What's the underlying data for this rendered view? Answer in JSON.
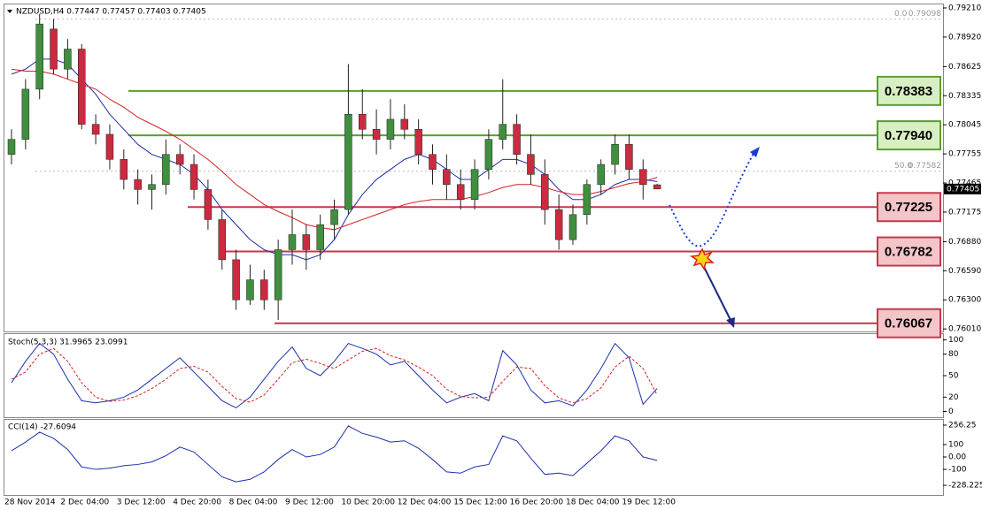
{
  "chart_data": {
    "type": "candlestick",
    "title": "NZDUSD,H4  0.77447 0.77457 0.77403 0.77405",
    "categories": [
      "28 Nov 2014",
      null,
      null,
      null,
      "2 Dec 04:00",
      null,
      null,
      null,
      "3 Dec 12:00",
      null,
      null,
      null,
      "4 Dec 20:00",
      null,
      null,
      null,
      "8 Dec 04:00",
      null,
      null,
      null,
      "9 Dec 12:00",
      null,
      null,
      null,
      "10 Dec 20:00",
      null,
      null,
      null,
      "12 Dec 04:00",
      null,
      null,
      null,
      "15 Dec 12:00",
      null,
      null,
      null,
      "16 Dec 20:00",
      null,
      null,
      null,
      "18 Dec 04:00",
      null,
      null,
      null,
      "19 Dec 12:00",
      null,
      null
    ],
    "open": [
      0.7775,
      0.779,
      0.784,
      0.79,
      0.786,
      0.788,
      0.7805,
      0.7795,
      0.777,
      0.775,
      0.774,
      0.7745,
      0.7775,
      0.7765,
      0.774,
      0.771,
      0.767,
      0.763,
      0.765,
      0.763,
      0.768,
      0.7695,
      0.768,
      0.7705,
      0.772,
      0.7815,
      0.78,
      0.779,
      0.781,
      0.78,
      0.7775,
      0.776,
      0.7745,
      0.773,
      0.776,
      0.779,
      0.7805,
      0.7775,
      0.7755,
      0.772,
      0.769,
      0.7715,
      0.7745,
      0.7765,
      0.7785,
      0.776,
      0.77447
    ],
    "high": [
      0.78,
      0.785,
      0.7915,
      0.791,
      0.789,
      0.7885,
      0.7815,
      0.7805,
      0.778,
      0.776,
      0.7755,
      0.779,
      0.7785,
      0.7775,
      0.775,
      0.772,
      0.768,
      0.7665,
      0.766,
      0.769,
      0.772,
      0.7705,
      0.7715,
      0.773,
      0.7865,
      0.784,
      0.782,
      0.783,
      0.7825,
      0.781,
      0.7785,
      0.7775,
      0.776,
      0.777,
      0.78,
      0.785,
      0.7815,
      0.7795,
      0.777,
      0.7735,
      0.7725,
      0.775,
      0.777,
      0.7795,
      0.7795,
      0.777,
      0.77457
    ],
    "low": [
      0.7765,
      0.778,
      0.783,
      0.7855,
      0.785,
      0.78,
      0.7785,
      0.776,
      0.774,
      0.7725,
      0.772,
      0.7735,
      0.7755,
      0.773,
      0.77,
      0.766,
      0.762,
      0.7625,
      0.762,
      0.761,
      0.7665,
      0.766,
      0.767,
      0.769,
      0.7715,
      0.779,
      0.7775,
      0.778,
      0.779,
      0.7765,
      0.7745,
      0.773,
      0.772,
      0.772,
      0.775,
      0.778,
      0.7765,
      0.7745,
      0.7705,
      0.768,
      0.7685,
      0.7705,
      0.7735,
      0.7755,
      0.775,
      0.773,
      0.77403
    ],
    "close": [
      0.779,
      0.784,
      0.7905,
      0.786,
      0.788,
      0.7805,
      0.7795,
      0.777,
      0.775,
      0.774,
      0.7745,
      0.7775,
      0.7765,
      0.774,
      0.771,
      0.767,
      0.763,
      0.765,
      0.763,
      0.768,
      0.7695,
      0.768,
      0.7705,
      0.772,
      0.7815,
      0.78,
      0.779,
      0.781,
      0.78,
      0.7775,
      0.776,
      0.7745,
      0.773,
      0.776,
      0.779,
      0.7805,
      0.7775,
      0.7755,
      0.772,
      0.769,
      0.7715,
      0.7745,
      0.7765,
      0.7785,
      0.776,
      0.7745,
      0.77405
    ],
    "up_color": "#3f8f3f",
    "down_color": "#cc2a40",
    "overlays": [
      {
        "color": "#1c2fa8",
        "values": [
          0.7855,
          0.786,
          0.787,
          0.787,
          0.7865,
          0.785,
          0.7835,
          0.7815,
          0.78,
          0.7785,
          0.7775,
          0.777,
          0.7765,
          0.7755,
          0.774,
          0.772,
          0.7705,
          0.769,
          0.768,
          0.7675,
          0.7675,
          0.767,
          0.7675,
          0.769,
          0.7715,
          0.7735,
          0.775,
          0.776,
          0.777,
          0.7775,
          0.777,
          0.776,
          0.775,
          0.775,
          0.776,
          0.777,
          0.777,
          0.7765,
          0.7755,
          0.774,
          0.773,
          0.773,
          0.7735,
          0.7745,
          0.775,
          0.775,
          0.7748
        ]
      },
      {
        "color": "#d42020",
        "values": [
          0.786,
          0.7858,
          0.7858,
          0.7855,
          0.785,
          0.7845,
          0.784,
          0.783,
          0.7822,
          0.7812,
          0.7805,
          0.7798,
          0.779,
          0.778,
          0.777,
          0.7758,
          0.7745,
          0.7735,
          0.7725,
          0.7718,
          0.7712,
          0.7705,
          0.7702,
          0.77,
          0.7705,
          0.771,
          0.7715,
          0.772,
          0.7725,
          0.7728,
          0.773,
          0.773,
          0.773,
          0.7733,
          0.7737,
          0.7742,
          0.7745,
          0.7745,
          0.7742,
          0.7738,
          0.7735,
          0.7735,
          0.7738,
          0.7742,
          0.7746,
          0.7748,
          0.7752
        ]
      }
    ],
    "ylim": [
      0.75985,
      0.79245
    ],
    "yticks": [
      {
        "value": 0.7921,
        "label": "0.79210"
      },
      {
        "value": 0.7892,
        "label": "0.78920"
      },
      0.78625,
      0.78335,
      0.78045,
      0.77755,
      0.77465,
      0.77175,
      {
        "value": 0.7688,
        "label": "0.76880"
      },
      {
        "value": 0.7659,
        "label": "0.76590"
      },
      {
        "value": 0.763,
        "label": "0.76300"
      },
      {
        "value": 0.7601,
        "label": "0.76010"
      }
    ],
    "last_price": 0.77405,
    "fib_levels": [
      {
        "level": "0.0",
        "price": 0.79098
      },
      {
        "level": "50.0",
        "price": 0.77582
      }
    ],
    "levels": [
      {
        "value": 0.78383,
        "color": "#5c9e2c",
        "box": "#d8efc3"
      },
      {
        "value": 0.7794,
        "label": "0.77940",
        "color": "#5c9e2c",
        "box": "#d8efc3"
      },
      {
        "value": 0.77225,
        "color": "#c4394d",
        "box": "#f3c5c8"
      },
      {
        "value": 0.76782,
        "color": "#c4394d",
        "box": "#f3c5c8"
      },
      {
        "value": 0.76067,
        "color": "#c4394d",
        "box": "#f3c5c8"
      }
    ],
    "stochastic": {
      "title": "Stoch(5,3,3) 31.9965 23.0991",
      "ylim": [
        -8,
        108
      ],
      "yticks": [
        100,
        80,
        50,
        20,
        0
      ],
      "main": {
        "color": "#1c2fa8",
        "values": [
          40,
          70,
          95,
          80,
          45,
          15,
          12,
          15,
          20,
          30,
          45,
          60,
          75,
          55,
          35,
          15,
          5,
          20,
          45,
          70,
          90,
          60,
          50,
          70,
          95,
          88,
          80,
          65,
          70,
          50,
          30,
          12,
          20,
          25,
          15,
          85,
          65,
          30,
          12,
          15,
          8,
          30,
          60,
          95,
          75,
          10,
          31.9965
        ]
      },
      "signal": {
        "color": "#d42020",
        "values": [
          45,
          55,
          80,
          88,
          70,
          40,
          20,
          14,
          16,
          22,
          32,
          45,
          60,
          63,
          55,
          35,
          18,
          13,
          23,
          45,
          68,
          73,
          67,
          60,
          72,
          84,
          88,
          78,
          72,
          62,
          50,
          31,
          21,
          19,
          20,
          42,
          62,
          60,
          36,
          19,
          12,
          18,
          33,
          62,
          77,
          60,
          23.0991
        ]
      }
    },
    "cci": {
      "title": "CCI(14) -27.6094",
      "ylim": [
        -306,
        299
      ],
      "yticks": [
        256.25,
        100,
        {
          "value": 0,
          "label": "0.00"
        },
        -100,
        -228.2254
      ],
      "color": "#1c2fa8",
      "values": [
        50,
        120,
        200,
        150,
        60,
        -80,
        -100,
        -90,
        -70,
        -60,
        -40,
        10,
        80,
        40,
        -60,
        -160,
        -200,
        -180,
        -120,
        -20,
        60,
        0,
        20,
        80,
        250,
        190,
        160,
        120,
        130,
        70,
        -20,
        -120,
        -130,
        -80,
        -60,
        170,
        130,
        -10,
        -140,
        -130,
        -150,
        -50,
        50,
        170,
        130,
        0,
        -27.6094
      ]
    }
  }
}
